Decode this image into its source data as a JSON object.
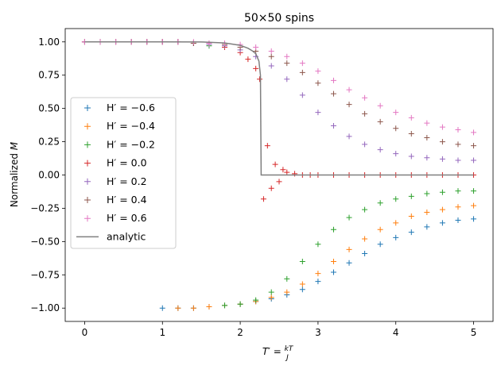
{
  "chart_data": {
    "type": "scatter",
    "title": "50×50 spins",
    "xlabel": "T′ = kT/J",
    "ylabel": "Normalized M",
    "xlim": [
      -0.25,
      5.25
    ],
    "ylim": [
      -1.1,
      1.1
    ],
    "x_ticks": [
      "0",
      "1",
      "2",
      "3",
      "4",
      "5"
    ],
    "y_ticks": [
      "−1.00",
      "−0.75",
      "−0.50",
      "−0.25",
      "0.00",
      "0.25",
      "0.50",
      "0.75",
      "1.00"
    ],
    "grid": false,
    "legend_position": "center-left",
    "series": [
      {
        "name": "H′ = −0.6",
        "marker": "+",
        "color": "#1f77b4",
        "x": [
          1.0,
          1.2,
          1.4,
          1.6,
          1.8,
          2.0,
          2.2,
          2.4,
          2.6,
          2.8,
          3.0,
          3.2,
          3.4,
          3.6,
          3.8,
          4.0,
          4.2,
          4.4,
          4.6,
          4.8,
          5.0
        ],
        "y": [
          -1.0,
          -1.0,
          -1.0,
          -0.99,
          -0.98,
          -0.97,
          -0.95,
          -0.93,
          -0.9,
          -0.86,
          -0.8,
          -0.73,
          -0.66,
          -0.59,
          -0.52,
          -0.47,
          -0.43,
          -0.39,
          -0.36,
          -0.34,
          -0.33
        ]
      },
      {
        "name": "H′ = −0.4",
        "marker": "+",
        "color": "#ff7f0e",
        "x": [
          1.2,
          1.4,
          1.6,
          1.8,
          2.0,
          2.2,
          2.4,
          2.6,
          2.8,
          3.0,
          3.2,
          3.4,
          3.6,
          3.8,
          4.0,
          4.2,
          4.4,
          4.6,
          4.8,
          5.0
        ],
        "y": [
          -1.0,
          -1.0,
          -0.99,
          -0.98,
          -0.97,
          -0.95,
          -0.92,
          -0.88,
          -0.82,
          -0.74,
          -0.65,
          -0.56,
          -0.48,
          -0.41,
          -0.36,
          -0.31,
          -0.28,
          -0.26,
          -0.24,
          -0.23
        ]
      },
      {
        "name": "H′ = −0.2",
        "marker": "+",
        "color": "#2ca02c",
        "x": [
          1.6,
          1.8,
          2.0,
          2.2,
          2.4,
          2.6,
          2.8,
          3.0,
          3.2,
          3.4,
          3.6,
          3.8,
          4.0,
          4.2,
          4.4,
          4.6,
          4.8,
          5.0
        ],
        "y": [
          0.97,
          -0.98,
          -0.97,
          -0.94,
          -0.88,
          -0.78,
          -0.65,
          -0.52,
          -0.41,
          -0.32,
          -0.26,
          -0.21,
          -0.18,
          -0.16,
          -0.14,
          -0.13,
          -0.12,
          -0.12
        ]
      },
      {
        "name": "H′ = 0.0",
        "marker": "+",
        "color": "#d62728",
        "x": [
          0.0,
          0.2,
          0.4,
          0.6,
          0.8,
          1.0,
          1.2,
          1.4,
          1.6,
          1.8,
          2.0,
          2.1,
          2.2,
          2.25,
          2.3,
          2.35,
          2.4,
          2.45,
          2.5,
          2.55,
          2.6,
          2.7,
          2.8,
          2.9,
          3.0,
          3.2,
          3.4,
          3.6,
          3.8,
          4.0,
          4.2,
          4.4,
          4.6,
          4.8,
          5.0
        ],
        "y": [
          1.0,
          1.0,
          1.0,
          1.0,
          1.0,
          1.0,
          1.0,
          0.99,
          0.99,
          0.96,
          0.92,
          0.87,
          0.8,
          0.72,
          -0.18,
          0.22,
          -0.1,
          0.08,
          -0.05,
          0.04,
          0.02,
          0.01,
          0.0,
          0.0,
          0.0,
          0.0,
          0.0,
          0.0,
          0.0,
          0.0,
          0.0,
          0.0,
          0.0,
          0.0,
          0.0
        ]
      },
      {
        "name": "H′ = 0.2",
        "marker": "+",
        "color": "#9467bd",
        "x": [
          0.0,
          0.2,
          0.4,
          0.6,
          0.8,
          1.0,
          1.2,
          1.4,
          1.6,
          1.8,
          2.0,
          2.2,
          2.4,
          2.6,
          2.8,
          3.0,
          3.2,
          3.4,
          3.6,
          3.8,
          4.0,
          4.2,
          4.4,
          4.6,
          4.8,
          5.0
        ],
        "y": [
          1.0,
          1.0,
          1.0,
          1.0,
          1.0,
          1.0,
          1.0,
          0.99,
          0.98,
          0.97,
          0.94,
          0.89,
          0.82,
          0.72,
          0.6,
          0.47,
          0.37,
          0.29,
          0.23,
          0.19,
          0.16,
          0.14,
          0.13,
          0.12,
          0.11,
          0.11
        ]
      },
      {
        "name": "H′ = 0.4",
        "marker": "+",
        "color": "#8c564b",
        "x": [
          0.0,
          0.2,
          0.4,
          0.6,
          0.8,
          1.0,
          1.2,
          1.4,
          1.6,
          1.8,
          2.0,
          2.2,
          2.4,
          2.6,
          2.8,
          3.0,
          3.2,
          3.4,
          3.6,
          3.8,
          4.0,
          4.2,
          4.4,
          4.6,
          4.8,
          5.0
        ],
        "y": [
          1.0,
          1.0,
          1.0,
          1.0,
          1.0,
          1.0,
          1.0,
          0.99,
          0.99,
          0.98,
          0.96,
          0.93,
          0.89,
          0.84,
          0.77,
          0.69,
          0.61,
          0.53,
          0.46,
          0.4,
          0.35,
          0.31,
          0.28,
          0.25,
          0.23,
          0.22
        ]
      },
      {
        "name": "H′ = 0.6",
        "marker": "+",
        "color": "#e377c2",
        "x": [
          0.0,
          0.2,
          0.4,
          0.6,
          0.8,
          1.0,
          1.2,
          1.4,
          1.6,
          1.8,
          2.0,
          2.2,
          2.4,
          2.6,
          2.8,
          3.0,
          3.2,
          3.4,
          3.6,
          3.8,
          4.0,
          4.2,
          4.4,
          4.6,
          4.8,
          5.0
        ],
        "y": [
          1.0,
          1.0,
          1.0,
          1.0,
          1.0,
          1.0,
          1.0,
          1.0,
          0.99,
          0.99,
          0.98,
          0.96,
          0.93,
          0.89,
          0.84,
          0.78,
          0.71,
          0.64,
          0.58,
          0.52,
          0.47,
          0.43,
          0.39,
          0.36,
          0.34,
          0.32
        ]
      },
      {
        "name": "analytic",
        "marker": "line",
        "color": "#7f7f7f",
        "x": [
          0.0,
          1.0,
          1.5,
          1.8,
          2.0,
          2.1,
          2.15,
          2.2,
          2.24,
          2.26,
          2.269,
          2.27,
          2.3,
          5.0
        ],
        "y": [
          1.0,
          1.0,
          0.999,
          0.992,
          0.974,
          0.952,
          0.935,
          0.911,
          0.855,
          0.75,
          0.0,
          0.0,
          0.0,
          0.0
        ]
      }
    ]
  }
}
